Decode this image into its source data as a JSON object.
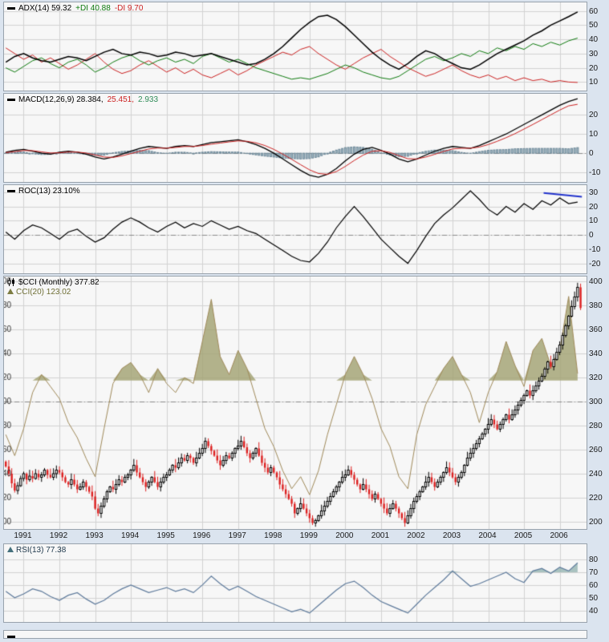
{
  "page": {
    "bg": "#dbe4ef",
    "panel_bg": "#f7f7f7",
    "grid": "#d2d2d2",
    "border": "#98a2ac",
    "dashdot_color": "#8a8a8a",
    "tick_color": "#1a1a1a"
  },
  "x_axis": {
    "min": 1990.45,
    "max": 2006.75,
    "year_labels": [
      "1991",
      "1992",
      "1993",
      "1994",
      "1995",
      "1996",
      "1997",
      "1998",
      "1999",
      "2000",
      "2001",
      "2002",
      "2003",
      "2004",
      "2005",
      "2006"
    ]
  },
  "chart_data": [
    {
      "id": "adx",
      "type": "line",
      "title": "ADX(14) 59.32 +DI 40.88 -DI 9.70",
      "legend": [
        {
          "text": "ADX(14) 59.32",
          "color": "#000000"
        },
        {
          "text": "+DI 40.88",
          "color": "#0e7a0e"
        },
        {
          "text": "-DI 9.70",
          "color": "#cc2222"
        }
      ],
      "ylim": [
        4,
        66
      ],
      "ticks": [
        60,
        50,
        40,
        30,
        20,
        10
      ],
      "x_start": 1990.5,
      "x_step": 0.25,
      "series": [
        {
          "name": "-DI",
          "color": "#cc2222",
          "width": 1,
          "values": [
            34,
            30,
            26,
            29,
            24,
            27,
            23,
            19,
            22,
            26,
            30,
            24,
            19,
            16,
            18,
            22,
            25,
            21,
            17,
            20,
            16,
            19,
            15,
            13,
            16,
            19,
            15,
            18,
            22,
            25,
            28,
            31,
            29,
            33,
            35,
            30,
            26,
            22,
            19,
            23,
            27,
            30,
            33,
            28,
            24,
            20,
            17,
            14,
            16,
            19,
            22,
            18,
            15,
            13,
            15,
            12,
            14,
            11,
            13,
            11,
            12,
            10,
            11,
            10,
            9.7
          ]
        },
        {
          "name": "+DI",
          "color": "#0e7a0e",
          "width": 1,
          "values": [
            20,
            17,
            21,
            25,
            27,
            23,
            20,
            24,
            26,
            22,
            17,
            20,
            24,
            27,
            29,
            25,
            22,
            25,
            27,
            24,
            26,
            23,
            28,
            30,
            27,
            24,
            26,
            23,
            20,
            18,
            16,
            14,
            12,
            13,
            12,
            14,
            16,
            19,
            22,
            20,
            17,
            15,
            13,
            12,
            14,
            18,
            22,
            26,
            28,
            25,
            27,
            30,
            28,
            32,
            30,
            34,
            32,
            35,
            33,
            37,
            35,
            38,
            36,
            39,
            40.9
          ]
        },
        {
          "name": "ADX",
          "color": "#000000",
          "width": 1.5,
          "values": [
            24,
            28,
            30,
            27,
            25,
            24,
            26,
            28,
            27,
            25,
            28,
            31,
            33,
            30,
            29,
            31,
            30,
            28,
            29,
            31,
            30,
            28,
            29,
            30,
            28,
            26,
            24,
            22,
            23,
            26,
            30,
            35,
            41,
            47,
            52,
            56,
            57,
            54,
            49,
            43,
            37,
            31,
            26,
            22,
            19,
            23,
            28,
            32,
            30,
            26,
            23,
            20,
            19,
            22,
            26,
            30,
            33,
            36,
            39,
            43,
            46,
            50,
            53,
            56,
            59.3
          ]
        }
      ]
    },
    {
      "id": "macd",
      "type": "line",
      "title": "MACD(12,26,9) 28.384, 25.451, 2.933",
      "legend": [
        {
          "text": "MACD(12,26,9) 28.384,",
          "color": "#000000"
        },
        {
          "text": "25.451,",
          "color": "#cc2222"
        },
        {
          "text": "2.933",
          "color": "#2e8b57"
        }
      ],
      "ylim": [
        -15,
        31
      ],
      "ticks": [
        20,
        10,
        0,
        -10
      ],
      "dashdot": [
        0
      ],
      "x_start": 1990.5,
      "x_step": 0.25,
      "histogram": {
        "name": "MACD Histogram",
        "color": "#a9bfca",
        "border": "#6d8898"
      },
      "series": [
        {
          "name": "MACD",
          "color": "#000000",
          "width": 1.3,
          "values": [
            0.5,
            1.5,
            2,
            1,
            0,
            -0.5,
            0.5,
            1,
            0.5,
            -0.5,
            -2,
            -3,
            -2,
            -0.5,
            1,
            2.5,
            3.5,
            3,
            2.5,
            3.5,
            4,
            3.5,
            4.5,
            5.5,
            6,
            6.5,
            7,
            6,
            4.5,
            2.5,
            0,
            -3,
            -6,
            -9,
            -11.5,
            -12.5,
            -11,
            -8,
            -4,
            -0.5,
            2,
            3,
            1.5,
            -0.5,
            -3,
            -4.5,
            -3,
            -1,
            1,
            2.5,
            3.5,
            3,
            2.5,
            4,
            6,
            8,
            10,
            12.5,
            15,
            17.5,
            20,
            22.5,
            25,
            27,
            28.4
          ]
        },
        {
          "name": "Signal",
          "color": "#cc2222",
          "width": 1,
          "values": [
            0.3,
            0.8,
            1.4,
            1.3,
            0.7,
            0.1,
            0.2,
            0.6,
            0.6,
            0.1,
            -0.9,
            -2,
            -2.2,
            -1.4,
            -0.2,
            1,
            2.2,
            2.7,
            2.6,
            3,
            3.5,
            3.5,
            4,
            4.7,
            5.3,
            5.9,
            6.4,
            6.2,
            5.4,
            4,
            2,
            -0.5,
            -3.2,
            -6,
            -8.7,
            -10.6,
            -11,
            -9.6,
            -6.9,
            -3.8,
            -1,
            1,
            1.3,
            0.4,
            -1.3,
            -2.9,
            -3,
            -2,
            -0.6,
            0.9,
            2.2,
            2.6,
            2.6,
            3.2,
            4.5,
            6.2,
            8.1,
            10.2,
            12.6,
            15,
            17.5,
            20,
            22.5,
            24.7,
            25.5
          ]
        }
      ]
    },
    {
      "id": "roc",
      "type": "line",
      "title": "ROC(13) 23.10%",
      "legend": [
        {
          "text": "ROC(13) 23.10%",
          "color": "#000000"
        }
      ],
      "ylim": [
        -27,
        35
      ],
      "ticks": [
        30,
        20,
        10,
        0,
        -10,
        -20
      ],
      "dashdot": [
        0
      ],
      "x_start": 1990.5,
      "x_step": 0.25,
      "series": [
        {
          "name": "ROC",
          "color": "#000000",
          "width": 1.2,
          "values": [
            2,
            -3,
            3,
            7,
            5,
            1,
            -3,
            2,
            4,
            -1,
            -5,
            -2,
            4,
            9,
            12,
            9,
            5,
            2,
            6,
            9,
            5,
            8,
            6,
            10,
            7,
            4,
            6,
            3,
            1,
            -3,
            -7,
            -11,
            -15,
            -18,
            -19,
            -13,
            -5,
            5,
            13,
            20,
            13,
            5,
            -3,
            -9,
            -15,
            -20,
            -11,
            -1,
            8,
            14,
            19,
            25,
            31,
            25,
            18,
            14,
            20,
            16,
            22,
            18,
            24,
            21,
            26,
            22,
            23.1
          ]
        }
      ],
      "annotation": {
        "name": "trendline",
        "color": "#2233cc",
        "width": 2,
        "points": [
          [
            2005.55,
            29.5
          ],
          [
            2006.62,
            26.8
          ]
        ]
      }
    },
    {
      "id": "price",
      "type": "candlestick",
      "title": "$CCI (Monthly) 377.82",
      "legend": [
        {
          "text": "$CCI (Monthly) 377.82",
          "color": "#000000"
        }
      ],
      "legend2": [
        {
          "text": "CCI(20) 123.02",
          "color": "#6f6f35"
        }
      ],
      "icon_color": "#7c7c42",
      "ylim": [
        194,
        404
      ],
      "ticks": [
        400,
        380,
        360,
        340,
        320,
        300,
        280,
        260,
        240,
        220,
        200
      ],
      "dashdot": [
        300
      ],
      "candles": {
        "x_start": 1990.5,
        "x_step": 0.083333,
        "up_color": "#000000",
        "down_color": "#dd2020",
        "closes": [
          246,
          240,
          232,
          226,
          230,
          236,
          240,
          235,
          238,
          236,
          240,
          237,
          239,
          243,
          239,
          237,
          240,
          243,
          241,
          237,
          233,
          231,
          235,
          231,
          227,
          229,
          233,
          229,
          225,
          221,
          211,
          207,
          213,
          219,
          225,
          229,
          227,
          231,
          235,
          233,
          237,
          239,
          243,
          247,
          241,
          237,
          233,
          229,
          233,
          237,
          233,
          229,
          233,
          237,
          239,
          243,
          247,
          245,
          249,
          253,
          251,
          255,
          253,
          249,
          253,
          257,
          261,
          267,
          263,
          259,
          255,
          251,
          247,
          251,
          255,
          253,
          257,
          261,
          263,
          267,
          262,
          257,
          253,
          257,
          261,
          255,
          249,
          245,
          241,
          245,
          241,
          237,
          231,
          227,
          223,
          219,
          215,
          207,
          211,
          215,
          211,
          207,
          203,
          199,
          201,
          205,
          209,
          213,
          217,
          221,
          225,
          229,
          233,
          237,
          239,
          243,
          239,
          235,
          231,
          227,
          231,
          227,
          223,
          219,
          223,
          219,
          215,
          211,
          207,
          211,
          215,
          211,
          207,
          203,
          199,
          205,
          211,
          217,
          221,
          225,
          229,
          233,
          237,
          233,
          229,
          233,
          237,
          241,
          245,
          241,
          237,
          233,
          237,
          241,
          247,
          253,
          257,
          261,
          265,
          269,
          273,
          277,
          281,
          285,
          281,
          277,
          281,
          285,
          289,
          285,
          289,
          293,
          297,
          301,
          305,
          309,
          305,
          309,
          313,
          317,
          321,
          327,
          333,
          329,
          335,
          341,
          347,
          355,
          363,
          371,
          379,
          387,
          395,
          377.8
        ]
      },
      "overlay": {
        "name": "CCI(20)",
        "line_color": "#a08a5a",
        "fill_color": "#a6a678",
        "threshold": 100,
        "cci_min": -350,
        "cci_max": 450,
        "price_min": 205,
        "price_max": 405,
        "x_start": 1990.5,
        "x_step": 0.25,
        "values": [
          -80,
          -150,
          -60,
          60,
          120,
          80,
          40,
          -40,
          -90,
          -160,
          -220,
          -60,
          90,
          140,
          160,
          120,
          60,
          140,
          90,
          60,
          110,
          90,
          230,
          370,
          180,
          120,
          200,
          140,
          40,
          -60,
          -120,
          -200,
          -260,
          -220,
          -280,
          -200,
          -80,
          20,
          120,
          180,
          120,
          40,
          -60,
          -120,
          -220,
          -260,
          -80,
          20,
          80,
          140,
          180,
          120,
          60,
          -40,
          60,
          130,
          230,
          150,
          80,
          200,
          240,
          150,
          200,
          380,
          123
        ]
      }
    },
    {
      "id": "rsi",
      "type": "line",
      "title": "RSI(13) 77.38",
      "legend": [
        {
          "text": "RSI(13) 77.38",
          "color": "#223b4e"
        }
      ],
      "icon_color": "#44707c",
      "ylim": [
        31,
        92
      ],
      "ticks": [
        80,
        70,
        60,
        50,
        40
      ],
      "x_start": 1990.5,
      "x_step": 0.25,
      "fill_above": {
        "threshold": 70,
        "color": "#8fb0ad"
      },
      "series": [
        {
          "name": "RSI",
          "color": "#5f7b9c",
          "width": 1.2,
          "values": [
            55,
            50,
            53,
            57,
            55,
            51,
            48,
            52,
            54,
            49,
            45,
            48,
            53,
            57,
            60,
            57,
            54,
            56,
            58,
            55,
            57,
            54,
            60,
            67,
            61,
            56,
            59,
            55,
            51,
            48,
            45,
            42,
            39,
            41,
            38,
            44,
            50,
            56,
            61,
            63,
            58,
            52,
            47,
            44,
            41,
            38,
            45,
            52,
            58,
            64,
            71,
            65,
            59,
            61,
            64,
            67,
            70,
            65,
            62,
            71,
            73,
            69,
            74,
            71,
            77.4
          ]
        }
      ]
    }
  ]
}
